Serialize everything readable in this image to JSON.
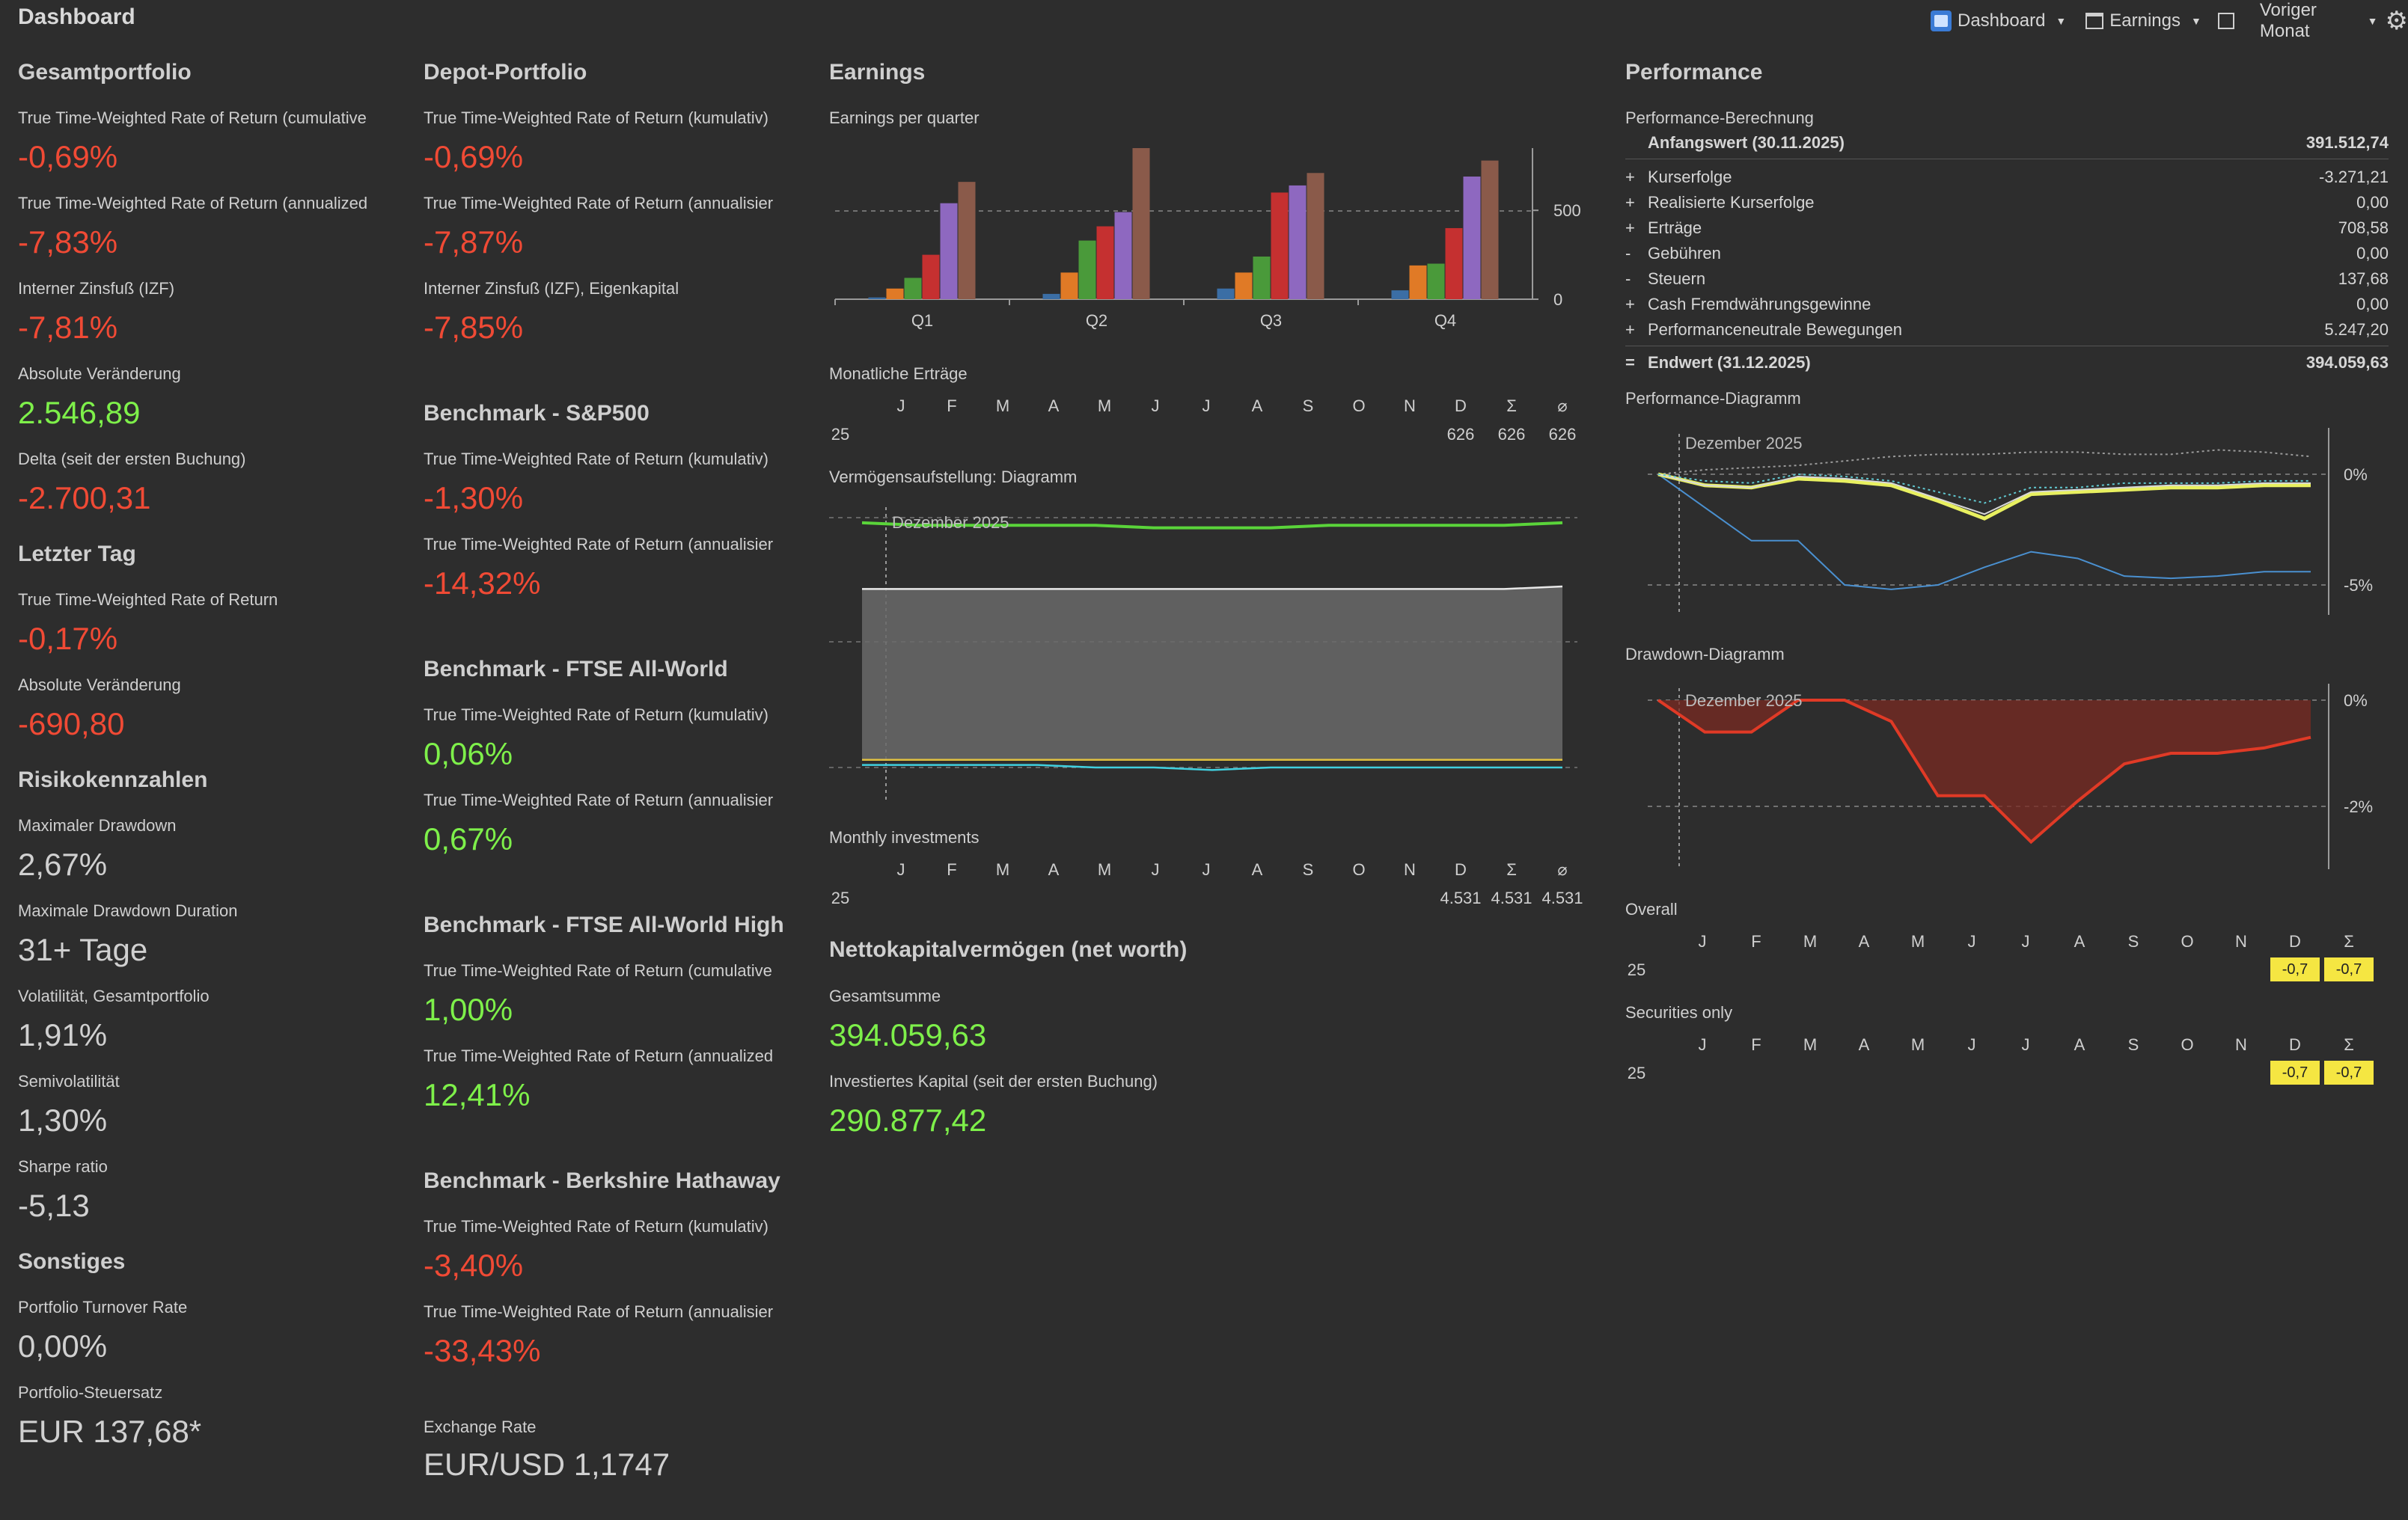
{
  "window": {
    "title": "Dashboard"
  },
  "toolbar": {
    "dashboard_label": "Dashboard",
    "earnings_label": "Earnings",
    "period_label": "Voriger Monat"
  },
  "col1": {
    "gesamt_title": "Gesamtportfolio",
    "ttwror_cum_label": "True Time-Weighted Rate of Return (cumulative",
    "ttwror_cum_value": "-0,69%",
    "ttwror_ann_label": "True Time-Weighted Rate of Return (annualized",
    "ttwror_ann_value": "-7,83%",
    "izf_label": "Interner Zinsfuß (IZF)",
    "izf_value": "-7,81%",
    "abs_label": "Absolute Veränderung",
    "abs_value": "2.546,89",
    "delta_label": "Delta (seit der ersten Buchung)",
    "delta_value": "-2.700,31",
    "letzter_title": "Letzter Tag",
    "lt_ttwror_label": "True Time-Weighted Rate of Return",
    "lt_ttwror_value": "-0,17%",
    "lt_abs_label": "Absolute Veränderung",
    "lt_abs_value": "-690,80",
    "risiko_title": "Risikokennzahlen",
    "maxdd_label": "Maximaler Drawdown",
    "maxdd_value": "2,67%",
    "maxddd_label": "Maximale Drawdown Duration",
    "maxddd_value": "31+ Tage",
    "vol_label": "Volatilität, Gesamtportfolio",
    "vol_value": "1,91%",
    "semivol_label": "Semivolatilität",
    "semivol_value": "1,30%",
    "sharpe_label": "Sharpe ratio",
    "sharpe_value": "-5,13",
    "sonst_title": "Sonstiges",
    "turnover_label": "Portfolio Turnover Rate",
    "turnover_value": "0,00%",
    "steuer_label": "Portfolio-Steuersatz",
    "steuer_value": "EUR 137,68*"
  },
  "col2": {
    "depot_title": "Depot-Portfolio",
    "d_cum_label": "True Time-Weighted Rate of Return (kumulativ)",
    "d_cum_value": "-0,69%",
    "d_ann_label": "True Time-Weighted Rate of Return (annualisier",
    "d_ann_value": "-7,87%",
    "d_izf_label": "Interner Zinsfuß (IZF), Eigenkapital",
    "d_izf_value": "-7,85%",
    "sp_title": "Benchmark - S&P500",
    "sp_cum_label": "True Time-Weighted Rate of Return (kumulativ)",
    "sp_cum_value": "-1,30%",
    "sp_ann_label": "True Time-Weighted Rate of Return (annualisier",
    "sp_ann_value": "-14,32%",
    "ftse_title": "Benchmark - FTSE All-World",
    "ftse_cum_label": "True Time-Weighted Rate of Return (kumulativ)",
    "ftse_cum_value": "0,06%",
    "ftse_ann_label": "True Time-Weighted Rate of Return (annualisier",
    "ftse_ann_value": "0,67%",
    "ftseh_title": "Benchmark - FTSE All-World High",
    "ftseh_cum_label": "True Time-Weighted Rate of Return (cumulative",
    "ftseh_cum_value": "1,00%",
    "ftseh_ann_label": "True Time-Weighted Rate of Return (annualized",
    "ftseh_ann_value": "12,41%",
    "brk_title": "Benchmark - Berkshire Hathaway",
    "brk_cum_label": "True Time-Weighted Rate of Return (kumulativ)",
    "brk_cum_value": "-3,40%",
    "brk_ann_label": "True Time-Weighted Rate of Return (annualisier",
    "brk_ann_value": "-33,43%",
    "fx_label": "Exchange Rate",
    "fx_value": "EUR/USD 1,1747"
  },
  "earnings": {
    "title": "Earnings",
    "epq_label": "Earnings per quarter",
    "monthly_label": "Monatliche Erträge",
    "vermoegen_label": "Vermögensaufstellung: Diagramm",
    "vermoegen_marker": "Dezember 2025",
    "monthly_inv_label": "Monthly investments",
    "networth_title": "Nettokapitalvermögen (net worth)",
    "gesamtsumme_label": "Gesamtsumme",
    "gesamtsumme_value": "394.059,63",
    "invest_label": "Investiertes Kapital (seit der ersten Buchung)",
    "invest_value": "290.877,42"
  },
  "month_headers": [
    "J",
    "F",
    "M",
    "A",
    "M",
    "J",
    "J",
    "A",
    "S",
    "O",
    "N",
    "D",
    "Σ",
    "⌀"
  ],
  "monthly_ertraege_row": {
    "year": "25",
    "d": "626",
    "sum": "626",
    "avg": "626"
  },
  "monthly_inv_row": {
    "year": "25",
    "d": "4.531",
    "sum": "4.531",
    "avg": "4.531"
  },
  "chart_data": [
    {
      "type": "bar",
      "title": "Earnings per quarter",
      "categories": [
        "Q1",
        "Q2",
        "Q3",
        "Q4"
      ],
      "ylim": [
        0,
        850
      ],
      "yticks": [
        "0",
        "500"
      ],
      "series": [
        {
          "color": "#3b6ea5",
          "values": [
            10,
            30,
            60,
            50
          ]
        },
        {
          "color": "#e07a26",
          "values": [
            60,
            150,
            150,
            190
          ]
        },
        {
          "color": "#4a9a3a",
          "values": [
            120,
            330,
            240,
            200
          ]
        },
        {
          "color": "#c53030",
          "values": [
            250,
            410,
            600,
            400
          ]
        },
        {
          "color": "#8e68c0",
          "values": [
            540,
            490,
            640,
            690
          ]
        },
        {
          "color": "#8a5a4a",
          "values": [
            660,
            850,
            710,
            780
          ]
        }
      ]
    },
    {
      "type": "area",
      "title": "Vermögensaufstellung: Diagramm",
      "series": [
        {
          "color": "#5ad43a",
          "values": [
            0.96,
            0.95,
            0.95,
            0.95,
            0.95,
            0.94,
            0.94,
            0.94,
            0.95,
            0.95,
            0.95,
            0.95,
            0.96
          ]
        },
        {
          "color": "#e8e8e8",
          "values": [
            0.7,
            0.7,
            0.7,
            0.7,
            0.7,
            0.7,
            0.7,
            0.7,
            0.7,
            0.7,
            0.7,
            0.7,
            0.71
          ]
        },
        {
          "color": "#e0c040",
          "values": [
            0.03,
            0.03,
            0.03,
            0.03,
            0.03,
            0.03,
            0.03,
            0.03,
            0.03,
            0.03,
            0.03,
            0.03,
            0.03
          ]
        },
        {
          "color": "#40d0e0",
          "values": [
            0.01,
            0.01,
            0.01,
            0.01,
            0.0,
            0.0,
            -0.01,
            0.0,
            0.0,
            0.0,
            0.0,
            0.0,
            0.0
          ]
        }
      ]
    },
    {
      "type": "line",
      "title": "Performance-Diagramm",
      "marker": "Dezember 2025",
      "yticks": [
        "0%",
        "-5%"
      ],
      "series": [
        {
          "color": "#9a9a9a",
          "values": [
            0,
            0.2,
            0.3,
            0.4,
            0.6,
            0.8,
            0.9,
            0.9,
            1.0,
            1.0,
            0.9,
            0.9,
            1.1,
            1.0,
            0.8
          ]
        },
        {
          "color": "#4a90d0",
          "values": [
            0,
            -1.5,
            -3.0,
            -3.0,
            -5.0,
            -5.2,
            -5.0,
            -4.2,
            -3.5,
            -3.8,
            -4.6,
            -4.7,
            -4.6,
            -4.4,
            -4.4
          ]
        },
        {
          "color": "#e8f060",
          "values": [
            0,
            -0.5,
            -0.6,
            -0.2,
            -0.3,
            -0.5,
            -1.2,
            -2.0,
            -0.9,
            -0.8,
            -0.7,
            -0.6,
            -0.6,
            -0.5,
            -0.5
          ]
        },
        {
          "color": "#d8d8d8",
          "values": [
            0,
            -0.5,
            -0.6,
            -0.1,
            -0.2,
            -0.4,
            -1.1,
            -1.8,
            -0.8,
            -0.7,
            -0.6,
            -0.5,
            -0.5,
            -0.4,
            -0.4
          ]
        },
        {
          "color": "#60c8d0",
          "values": [
            0,
            -0.3,
            -0.4,
            0,
            -0.1,
            -0.3,
            -0.8,
            -1.3,
            -0.6,
            -0.6,
            -0.4,
            -0.4,
            -0.4,
            -0.3,
            -0.3
          ]
        }
      ]
    },
    {
      "type": "area",
      "title": "Drawdown-Diagramm",
      "marker": "Dezember 2025",
      "yticks": [
        "0%",
        "-2%"
      ],
      "series": [
        {
          "color": "#e03a26",
          "values": [
            0,
            -0.6,
            -0.6,
            0,
            0,
            -0.4,
            -1.8,
            -1.8,
            -2.67,
            -1.9,
            -1.2,
            -1.0,
            -1.0,
            -0.9,
            -0.7
          ]
        }
      ]
    }
  ],
  "performance": {
    "title": "Performance",
    "calc_label": "Performance-Berechnung",
    "rows": [
      {
        "sign": "",
        "name": "Anfangswert (30.11.2025)",
        "value": "391.512,74",
        "bold": true
      },
      {
        "sign": "+",
        "name": "Kurserfolge",
        "value": "-3.271,21"
      },
      {
        "sign": "+",
        "name": "Realisierte Kurserfolge",
        "value": "0,00"
      },
      {
        "sign": "+",
        "name": "Erträge",
        "value": "708,58"
      },
      {
        "sign": "-",
        "name": "Gebühren",
        "value": "0,00"
      },
      {
        "sign": "-",
        "name": "Steuern",
        "value": "137,68"
      },
      {
        "sign": "+",
        "name": "Cash Fremdwährungsgewinne",
        "value": "0,00"
      },
      {
        "sign": "+",
        "name": "Performanceneutrale Bewegungen",
        "value": "5.247,20"
      },
      {
        "sign": "=",
        "name": "Endwert (31.12.2025)",
        "value": "394.059,63",
        "bold": true
      }
    ],
    "perf_chart_label": "Performance-Diagramm",
    "dd_chart_label": "Drawdown-Diagramm",
    "overall_label": "Overall",
    "securities_label": "Securities only",
    "perf_months": [
      "J",
      "F",
      "M",
      "A",
      "M",
      "J",
      "J",
      "A",
      "S",
      "O",
      "N",
      "D",
      "Σ"
    ],
    "overall_row": {
      "year": "25",
      "d": "-0,7",
      "sum": "-0,7"
    },
    "securities_row": {
      "year": "25",
      "d": "-0,7",
      "sum": "-0,7"
    }
  }
}
